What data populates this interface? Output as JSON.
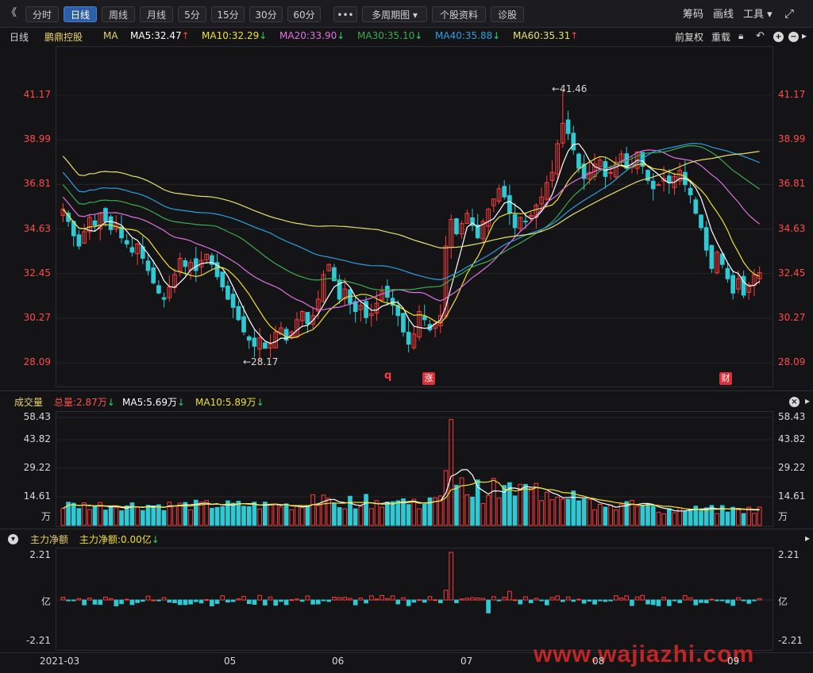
{
  "toolbar": {
    "collapse_label": "《",
    "tabs": [
      "分时",
      "日线",
      "周线",
      "月线",
      "5分",
      "15分",
      "30分",
      "60分",
      "•••",
      "多周期图 ▾",
      "个股资料",
      "诊股"
    ],
    "active_tab": "日线",
    "right_items": [
      "筹码",
      "画线",
      "工具 ▾"
    ],
    "expand_icon_label": "⤢"
  },
  "chart_header": {
    "period": "日线",
    "stock_name": "鹏鼎控股",
    "ma_label": "MA",
    "ma5": "MA5:32.47",
    "ma10": "MA10:32.29",
    "ma20": "MA20:33.90",
    "ma30": "MA30:35.10",
    "ma40": "MA40:35.88",
    "ma60": "MA60:35.31",
    "ma5_dir": "↑",
    "ma10_dir": "↓",
    "ma20_dir": "↓",
    "ma30_dir": "↓",
    "ma40_dir": "↓",
    "ma60_dir": "↑",
    "adjust": "前复权",
    "reload": "重载"
  },
  "price_axis": [
    "41.17",
    "38.99",
    "36.81",
    "34.63",
    "32.45",
    "30.27",
    "28.09"
  ],
  "price_annotations": {
    "high": "←41.46",
    "low": "←28.17"
  },
  "markers": {
    "q": "q",
    "zhang": "涨",
    "cai": "财"
  },
  "volume_header": {
    "title": "成交量",
    "total": "总量:2.87万",
    "ma5": "MA5:5.69万",
    "ma10": "MA10:5.89万",
    "total_dir": "↓",
    "ma5_dir": "↓",
    "ma10_dir": "↓"
  },
  "volume_axis": [
    "58.43",
    "43.82",
    "29.22",
    "14.61",
    "万"
  ],
  "capital_header": {
    "title": "主力净额",
    "value": "主力净额:0.00亿",
    "value_dir": "↓"
  },
  "capital_axis": [
    "2.21",
    "亿",
    "-2.21"
  ],
  "date_axis": [
    "2021-03",
    "05",
    "06",
    "07",
    "08",
    "09"
  ],
  "watermark": "www.wajiazhi.com",
  "colors": {
    "up": "#ff3b3b",
    "down": "#2ec9d3",
    "ma5": "#ffffff",
    "ma10": "#f0e030",
    "ma20": "#e070e0",
    "ma30": "#3caa50",
    "ma40": "#2aa0e0",
    "ma60": "#e8e070"
  },
  "chart_data": {
    "type": "candlestick",
    "ylim": [
      28.09,
      41.17
    ],
    "x_range": [
      "2021-03",
      "2021-09"
    ],
    "high_annotation": 41.46,
    "low_annotation": 28.17,
    "close_series": [
      35.6,
      35.0,
      34.3,
      33.8,
      34.5,
      35.2,
      34.8,
      35.4,
      35.0,
      34.6,
      34.9,
      34.2,
      33.9,
      33.5,
      33.9,
      33.2,
      32.6,
      32.0,
      31.5,
      31.2,
      31.8,
      32.4,
      33.2,
      32.8,
      33.0,
      32.6,
      33.1,
      33.4,
      32.9,
      32.3,
      31.8,
      31.2,
      30.8,
      30.2,
      29.6,
      29.2,
      28.9,
      29.3,
      28.8,
      29.0,
      29.6,
      29.8,
      29.2,
      29.6,
      30.2,
      30.6,
      30.0,
      30.4,
      31.2,
      32.4,
      32.9,
      32.1,
      31.2,
      31.7,
      31.0,
      30.6,
      30.9,
      30.3,
      30.5,
      31.0,
      31.6,
      31.3,
      30.9,
      30.4,
      29.6,
      29.0,
      29.5,
      30.6,
      30.2,
      29.7,
      30.0,
      30.4,
      33.8,
      35.1,
      34.4,
      34.9,
      35.4,
      34.8,
      34.2,
      35.0,
      35.6,
      36.1,
      36.6,
      36.2,
      35.4,
      34.7,
      35.2,
      35.0,
      35.3,
      35.8,
      36.2,
      36.9,
      37.4,
      38.8,
      39.8,
      39.3,
      38.5,
      37.6,
      37.1,
      37.4,
      37.8,
      38.0,
      37.2,
      37.4,
      37.9,
      38.3,
      37.6,
      37.8,
      38.4,
      37.7,
      37.0,
      36.6,
      36.8,
      37.1,
      36.9,
      37.2,
      37.5,
      36.8,
      36.3,
      35.4,
      34.7,
      33.6,
      32.7,
      33.5,
      32.9,
      32.2,
      31.5,
      32.2,
      31.4,
      31.9,
      32.4,
      32.5
    ]
  }
}
